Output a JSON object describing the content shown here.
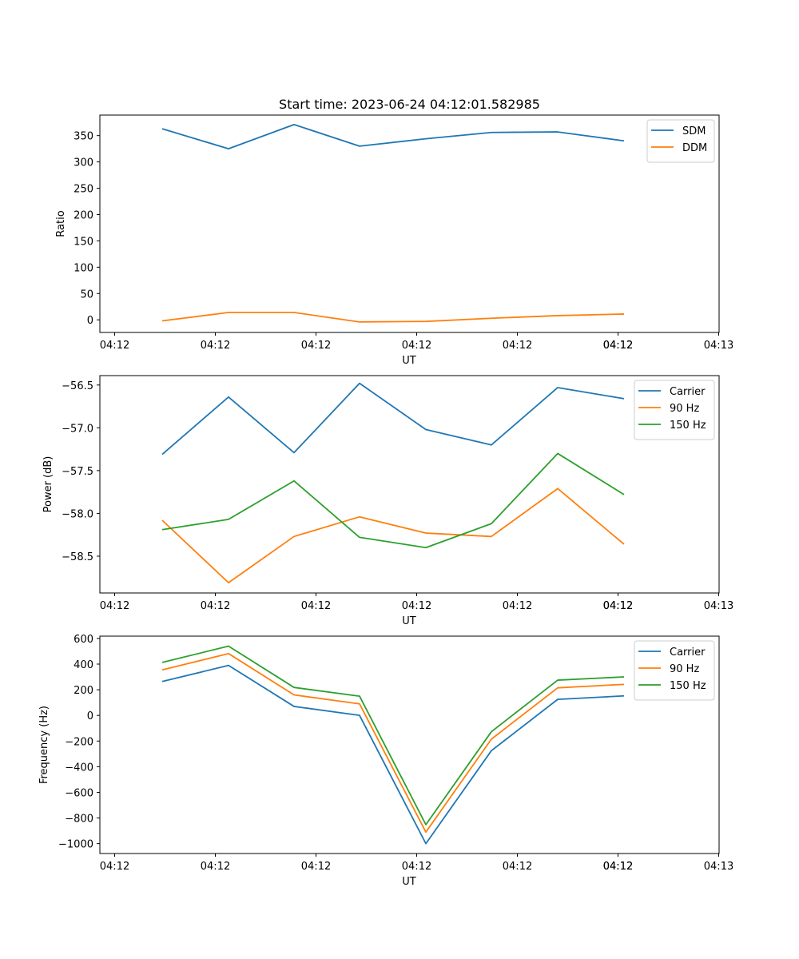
{
  "title": "Start time: 2023-06-24 04:12:01.582985",
  "chart_data": [
    {
      "type": "line",
      "title": "Start time: 2023-06-24 04:12:01.582985",
      "xlabel": "UT",
      "ylabel": "Ratio",
      "x_tick_labels": [
        "04:12",
        "04:12",
        "04:12",
        "04:12",
        "04:12",
        "04:12",
        "04:12",
        "04:13"
      ],
      "y_ticks": [
        0,
        50,
        100,
        150,
        200,
        250,
        300,
        350
      ],
      "ylim": [
        -24,
        389
      ],
      "legend": "top-right",
      "grid": false,
      "series": [
        {
          "name": "SDM",
          "color": "#1f77b4",
          "values": [
            363,
            325,
            371,
            330,
            344,
            356,
            357,
            340
          ]
        },
        {
          "name": "DDM",
          "color": "#ff7f0e",
          "values": [
            -2,
            14,
            14,
            -4,
            -3,
            3,
            8,
            11
          ]
        }
      ]
    },
    {
      "type": "line",
      "title": "",
      "xlabel": "UT",
      "ylabel": "Power (dB)",
      "x_tick_labels": [
        "04:12",
        "04:12",
        "04:12",
        "04:12",
        "04:12",
        "04:12",
        "04:12",
        "04:13"
      ],
      "y_ticks": [
        -58.5,
        -58.0,
        -57.5,
        -57.0,
        -56.5
      ],
      "y_tick_labels": [
        "−58.5",
        "−58.0",
        "−57.5",
        "−57.0",
        "−56.5"
      ],
      "ylim": [
        -58.93,
        -56.39
      ],
      "legend": "top-right",
      "grid": false,
      "series": [
        {
          "name": "Carrier",
          "color": "#1f77b4",
          "values": [
            -57.31,
            -56.64,
            -57.29,
            -56.48,
            -57.02,
            -57.2,
            -56.53,
            -56.66
          ]
        },
        {
          "name": "90 Hz",
          "color": "#ff7f0e",
          "values": [
            -58.08,
            -58.81,
            -58.27,
            -58.04,
            -58.23,
            -58.27,
            -57.71,
            -58.36
          ]
        },
        {
          "name": "150 Hz",
          "color": "#2ca02c",
          "values": [
            -58.19,
            -58.07,
            -57.62,
            -58.28,
            -58.4,
            -58.12,
            -57.3,
            -57.78
          ]
        }
      ]
    },
    {
      "type": "line",
      "title": "",
      "xlabel": "UT",
      "ylabel": "Frequency (Hz)",
      "x_tick_labels": [
        "04:12",
        "04:12",
        "04:12",
        "04:12",
        "04:12",
        "04:12",
        "04:12",
        "04:13"
      ],
      "y_ticks": [
        -1000,
        -800,
        -600,
        -400,
        -200,
        0,
        200,
        400,
        600
      ],
      "y_tick_labels": [
        "−1000",
        "−800",
        "−600",
        "−400",
        "−200",
        "0",
        "200",
        "400",
        "600"
      ],
      "ylim": [
        -1077,
        618
      ],
      "legend": "top-right",
      "grid": false,
      "series": [
        {
          "name": "Carrier",
          "color": "#1f77b4",
          "values": [
            264,
            390,
            70,
            0,
            -1000,
            -275,
            125,
            152
          ]
        },
        {
          "name": "90 Hz",
          "color": "#ff7f0e",
          "values": [
            355,
            482,
            160,
            90,
            -910,
            -185,
            215,
            242
          ]
        },
        {
          "name": "150 Hz",
          "color": "#2ca02c",
          "values": [
            413,
            540,
            218,
            150,
            -852,
            -127,
            275,
            300
          ]
        }
      ]
    }
  ]
}
